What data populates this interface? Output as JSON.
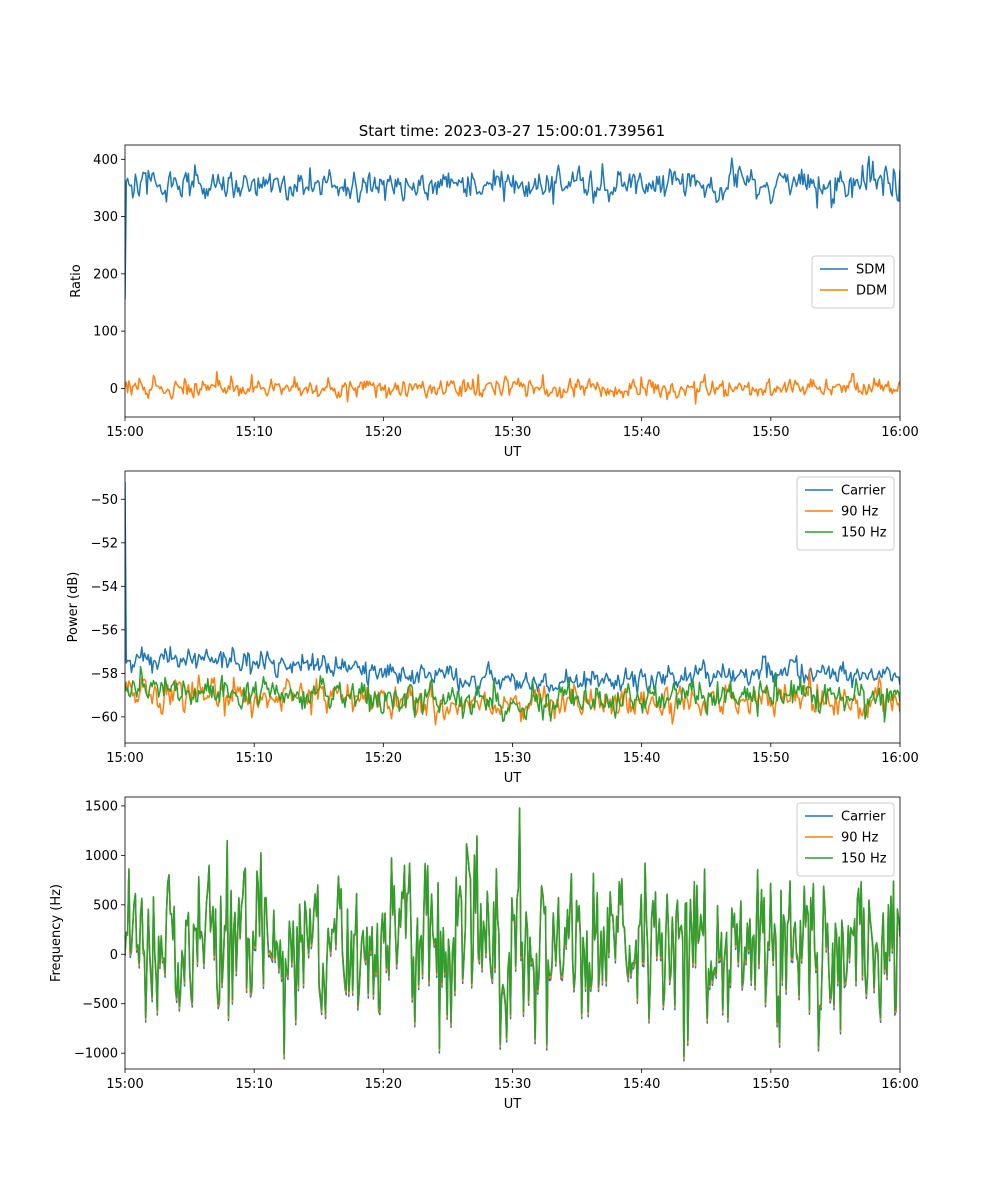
{
  "figure_title": "Start time: 2023-03-27 15:00:01.739561",
  "colors": {
    "blue": "#1f77b4",
    "orange": "#ff7f0e",
    "green": "#2ca02c"
  },
  "chart_data": [
    {
      "type": "line",
      "title": "Start time: 2023-03-27 15:00:01.739561",
      "xlabel": "UT",
      "ylabel": "Ratio",
      "xlim": [
        "15:00",
        "16:00"
      ],
      "ylim": [
        -50,
        425
      ],
      "x_ticks": [
        "15:00",
        "15:10",
        "15:20",
        "15:30",
        "15:40",
        "15:50",
        "16:00"
      ],
      "y_ticks": [
        0,
        100,
        200,
        300,
        400
      ],
      "y_tick_labels": [
        "0",
        "100",
        "200",
        "300",
        "400"
      ],
      "legend_position": "center-right",
      "series": [
        {
          "name": "SDM",
          "color": "#1f77b4",
          "first_value": 155,
          "mean": 357,
          "noise": 13,
          "spikes": [
            [
              47.0,
              402
            ],
            [
              53.6,
              315
            ],
            [
              57.6,
              405
            ],
            [
              58.7,
              337
            ],
            [
              59.9,
              327
            ]
          ]
        },
        {
          "name": "DDM",
          "color": "#ff7f0e",
          "first_value": 2,
          "mean": 0,
          "noise": 8,
          "spikes": [
            [
              27.3,
              24
            ],
            [
              44.2,
              -27
            ],
            [
              13.1,
              20
            ]
          ]
        }
      ]
    },
    {
      "type": "line",
      "xlabel": "UT",
      "ylabel": "Power (dB)",
      "xlim": [
        "15:00",
        "16:00"
      ],
      "ylim": [
        -61.2,
        -48.7
      ],
      "x_ticks": [
        "15:00",
        "15:10",
        "15:20",
        "15:30",
        "15:40",
        "15:50",
        "16:00"
      ],
      "y_ticks": [
        -60,
        -58,
        -56,
        -54,
        -52,
        -50
      ],
      "y_tick_labels": [
        "−60",
        "−58",
        "−56",
        "−54",
        "−52",
        "−50"
      ],
      "legend_position": "top-right",
      "series": [
        {
          "name": "Carrier",
          "color": "#1f77b4",
          "first_value": -49.2,
          "trend": [
            [
              0,
              -57.4
            ],
            [
              5,
              -57.3
            ],
            [
              15,
              -57.6
            ],
            [
              20,
              -58.0
            ],
            [
              30,
              -58.4
            ],
            [
              40,
              -58.3
            ],
            [
              50,
              -57.9
            ],
            [
              60,
              -58.1
            ]
          ],
          "noise": 0.25
        },
        {
          "name": "90 Hz",
          "color": "#ff7f0e",
          "first_value": -58.6,
          "trend": [
            [
              0,
              -58.8
            ],
            [
              10,
              -58.9
            ],
            [
              20,
              -59.2
            ],
            [
              30,
              -59.5
            ],
            [
              40,
              -59.4
            ],
            [
              50,
              -59.1
            ],
            [
              60,
              -59.3
            ]
          ],
          "noise": 0.35
        },
        {
          "name": "150 Hz",
          "color": "#2ca02c",
          "first_value": -58.5,
          "trend": [
            [
              0,
              -58.8
            ],
            [
              10,
              -58.9
            ],
            [
              20,
              -59.1
            ],
            [
              30,
              -59.4
            ],
            [
              40,
              -59.2
            ],
            [
              50,
              -59.0
            ],
            [
              60,
              -59.1
            ]
          ],
          "noise": 0.35
        }
      ]
    },
    {
      "type": "line",
      "xlabel": "UT",
      "ylabel": "Frequency (Hz)",
      "xlim": [
        "15:00",
        "16:00"
      ],
      "ylim": [
        -1160,
        1590
      ],
      "x_ticks": [
        "15:00",
        "15:10",
        "15:20",
        "15:30",
        "15:40",
        "15:50",
        "16:00"
      ],
      "y_ticks": [
        -1000,
        -500,
        0,
        500,
        1000,
        1500
      ],
      "y_tick_labels": [
        "−1000",
        "−500",
        "0",
        "500",
        "1000",
        "1500"
      ],
      "legend_position": "top-right",
      "series": [
        {
          "name": "Carrier",
          "color": "#1f77b4",
          "offset": -60,
          "mean": 120,
          "noise": 380,
          "spikes": [
            [
              30.6,
              1480
            ],
            [
              12.3,
              -1010
            ],
            [
              43.3,
              -1030
            ],
            [
              7.9,
              1150
            ],
            [
              24.3,
              -950
            ],
            [
              32.7,
              -920
            ]
          ]
        },
        {
          "name": "90 Hz",
          "color": "#ff7f0e",
          "offset": -30,
          "mean": 120,
          "noise": 380,
          "spikes": [
            [
              30.6,
              1480
            ],
            [
              12.3,
              -1010
            ],
            [
              43.3,
              -1030
            ],
            [
              7.9,
              1150
            ],
            [
              24.3,
              -950
            ],
            [
              32.7,
              -920
            ]
          ]
        },
        {
          "name": "150 Hz",
          "color": "#2ca02c",
          "offset": 0,
          "mean": 120,
          "noise": 380,
          "spikes": [
            [
              30.6,
              1480
            ],
            [
              12.3,
              -1010
            ],
            [
              43.3,
              -1030
            ],
            [
              7.9,
              1150
            ],
            [
              24.3,
              -950
            ],
            [
              32.7,
              -920
            ]
          ]
        }
      ]
    }
  ]
}
